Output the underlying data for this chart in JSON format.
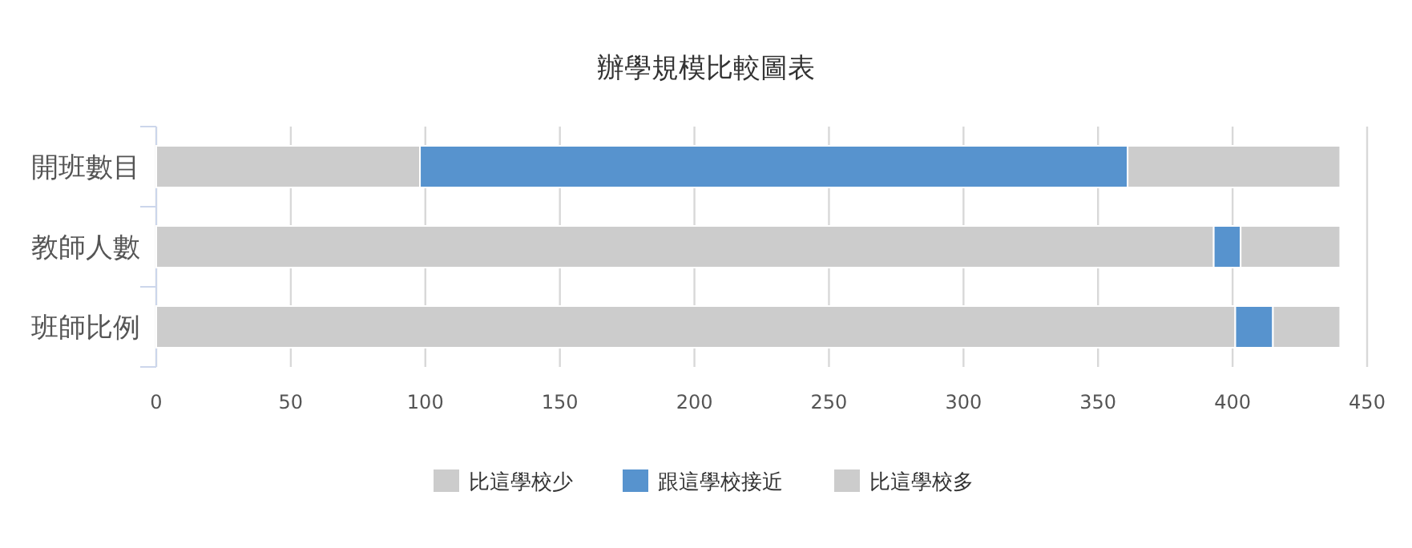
{
  "chart_data": {
    "type": "bar",
    "orientation": "horizontal",
    "stacked": true,
    "title": "辦學規模比較圖表",
    "categories": [
      "開班數目",
      "教師人數",
      "班師比例"
    ],
    "series": [
      {
        "name": "比這學校少",
        "color": "#cccccc",
        "values": [
          98,
          393,
          401
        ]
      },
      {
        "name": "跟這學校接近",
        "color": "#5793ce",
        "values": [
          263,
          10,
          14
        ]
      },
      {
        "name": "比這學校多",
        "color": "#cccccc",
        "values": [
          79,
          37,
          25
        ]
      }
    ],
    "xlim": [
      0,
      450
    ],
    "xticks": [
      0,
      50,
      100,
      150,
      200,
      250,
      300,
      350,
      400,
      450
    ],
    "grid": "x",
    "legend": "bottom"
  }
}
